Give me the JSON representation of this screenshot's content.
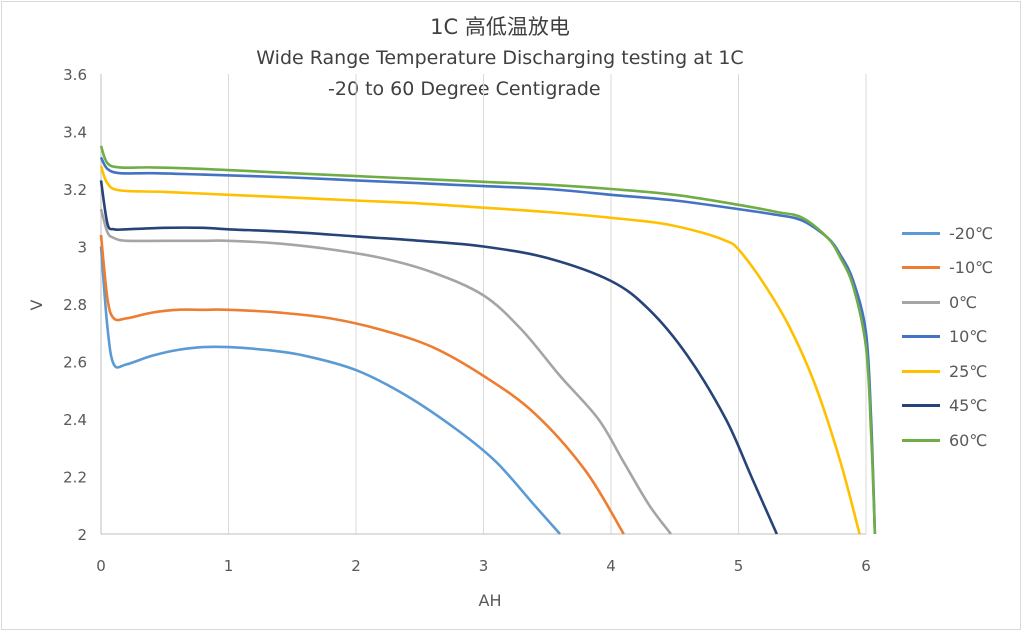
{
  "chart_data": {
    "type": "line",
    "title": "1C 高低温放电",
    "subtitle_line1": "Wide Range Temperature Discharging testing at 1C",
    "subtitle_line2": "-20 to 60 Degree Centigrade",
    "xlabel": "AH",
    "ylabel": "V",
    "xlim": [
      0,
      6
    ],
    "ylim": [
      2,
      3.6
    ],
    "x_ticks": [
      "0",
      "1",
      "2",
      "3",
      "4",
      "5",
      "6"
    ],
    "y_ticks": [
      "2",
      "2.2",
      "2.4",
      "2.6",
      "2.8",
      "3",
      "3.2",
      "3.4",
      "3.6"
    ],
    "grid": "vertical",
    "legend_position": "right",
    "series": [
      {
        "name": "-20℃",
        "color": "#5b9bd5",
        "x": [
          0,
          0.05,
          0.1,
          0.2,
          0.4,
          0.6,
          0.8,
          1.0,
          1.3,
          1.6,
          2.0,
          2.4,
          2.8,
          3.1,
          3.4,
          3.6
        ],
        "y": [
          3.0,
          2.72,
          2.59,
          2.59,
          2.62,
          2.64,
          2.65,
          2.65,
          2.64,
          2.62,
          2.57,
          2.48,
          2.36,
          2.25,
          2.1,
          2.0
        ]
      },
      {
        "name": "-10℃",
        "color": "#ed7d31",
        "x": [
          0,
          0.05,
          0.1,
          0.2,
          0.4,
          0.6,
          0.8,
          1.0,
          1.4,
          1.8,
          2.2,
          2.6,
          3.0,
          3.4,
          3.8,
          4.1
        ],
        "y": [
          3.04,
          2.82,
          2.75,
          2.75,
          2.77,
          2.78,
          2.78,
          2.78,
          2.77,
          2.75,
          2.71,
          2.65,
          2.55,
          2.42,
          2.22,
          2.0
        ]
      },
      {
        "name": "0℃",
        "color": "#a5a5a5",
        "x": [
          0,
          0.05,
          0.1,
          0.2,
          0.5,
          0.8,
          1.0,
          1.4,
          1.8,
          2.2,
          2.6,
          3.0,
          3.3,
          3.6,
          3.9,
          4.1,
          4.3,
          4.47
        ],
        "y": [
          3.13,
          3.05,
          3.03,
          3.02,
          3.02,
          3.02,
          3.02,
          3.01,
          2.99,
          2.96,
          2.91,
          2.83,
          2.71,
          2.55,
          2.4,
          2.25,
          2.1,
          2.0
        ]
      },
      {
        "name": "10℃",
        "color": "#4472c4",
        "x": [
          0,
          0.05,
          0.15,
          0.4,
          0.8,
          1.5,
          2.0,
          2.5,
          3.0,
          3.5,
          4.0,
          4.5,
          5.0,
          5.3,
          5.5,
          5.7,
          5.8,
          5.9,
          6.0,
          6.04,
          6.07
        ],
        "y": [
          3.31,
          3.27,
          3.255,
          3.255,
          3.25,
          3.24,
          3.23,
          3.22,
          3.21,
          3.2,
          3.18,
          3.16,
          3.13,
          3.11,
          3.09,
          3.03,
          2.97,
          2.88,
          2.7,
          2.4,
          2.0
        ]
      },
      {
        "name": "25℃",
        "color": "#ffc000",
        "x": [
          0,
          0.05,
          0.15,
          0.5,
          1.0,
          1.5,
          2.0,
          2.5,
          3.0,
          3.5,
          4.0,
          4.4,
          4.7,
          4.9,
          5.0,
          5.2,
          5.4,
          5.6,
          5.8,
          5.95
        ],
        "y": [
          3.28,
          3.22,
          3.195,
          3.19,
          3.18,
          3.17,
          3.16,
          3.15,
          3.135,
          3.12,
          3.1,
          3.08,
          3.05,
          3.02,
          2.99,
          2.87,
          2.72,
          2.52,
          2.25,
          2.0
        ]
      },
      {
        "name": "45℃",
        "color": "#264478",
        "x": [
          0,
          0.05,
          0.1,
          0.2,
          0.5,
          0.8,
          1.0,
          1.5,
          2.0,
          2.5,
          3.0,
          3.5,
          4.0,
          4.3,
          4.6,
          4.9,
          5.1,
          5.3
        ],
        "y": [
          3.23,
          3.08,
          3.06,
          3.06,
          3.065,
          3.065,
          3.06,
          3.05,
          3.035,
          3.02,
          3.0,
          2.96,
          2.88,
          2.78,
          2.62,
          2.4,
          2.2,
          2.0
        ]
      },
      {
        "name": "60℃",
        "color": "#70ad47",
        "x": [
          0,
          0.05,
          0.15,
          0.4,
          0.8,
          1.5,
          2.0,
          2.5,
          3.0,
          3.5,
          4.0,
          4.5,
          5.0,
          5.3,
          5.5,
          5.7,
          5.8,
          5.9,
          6.0,
          6.04,
          6.07
        ],
        "y": [
          3.35,
          3.29,
          3.275,
          3.275,
          3.27,
          3.255,
          3.245,
          3.235,
          3.225,
          3.215,
          3.2,
          3.18,
          3.145,
          3.12,
          3.1,
          3.03,
          2.96,
          2.86,
          2.65,
          2.35,
          2.0
        ]
      }
    ]
  }
}
